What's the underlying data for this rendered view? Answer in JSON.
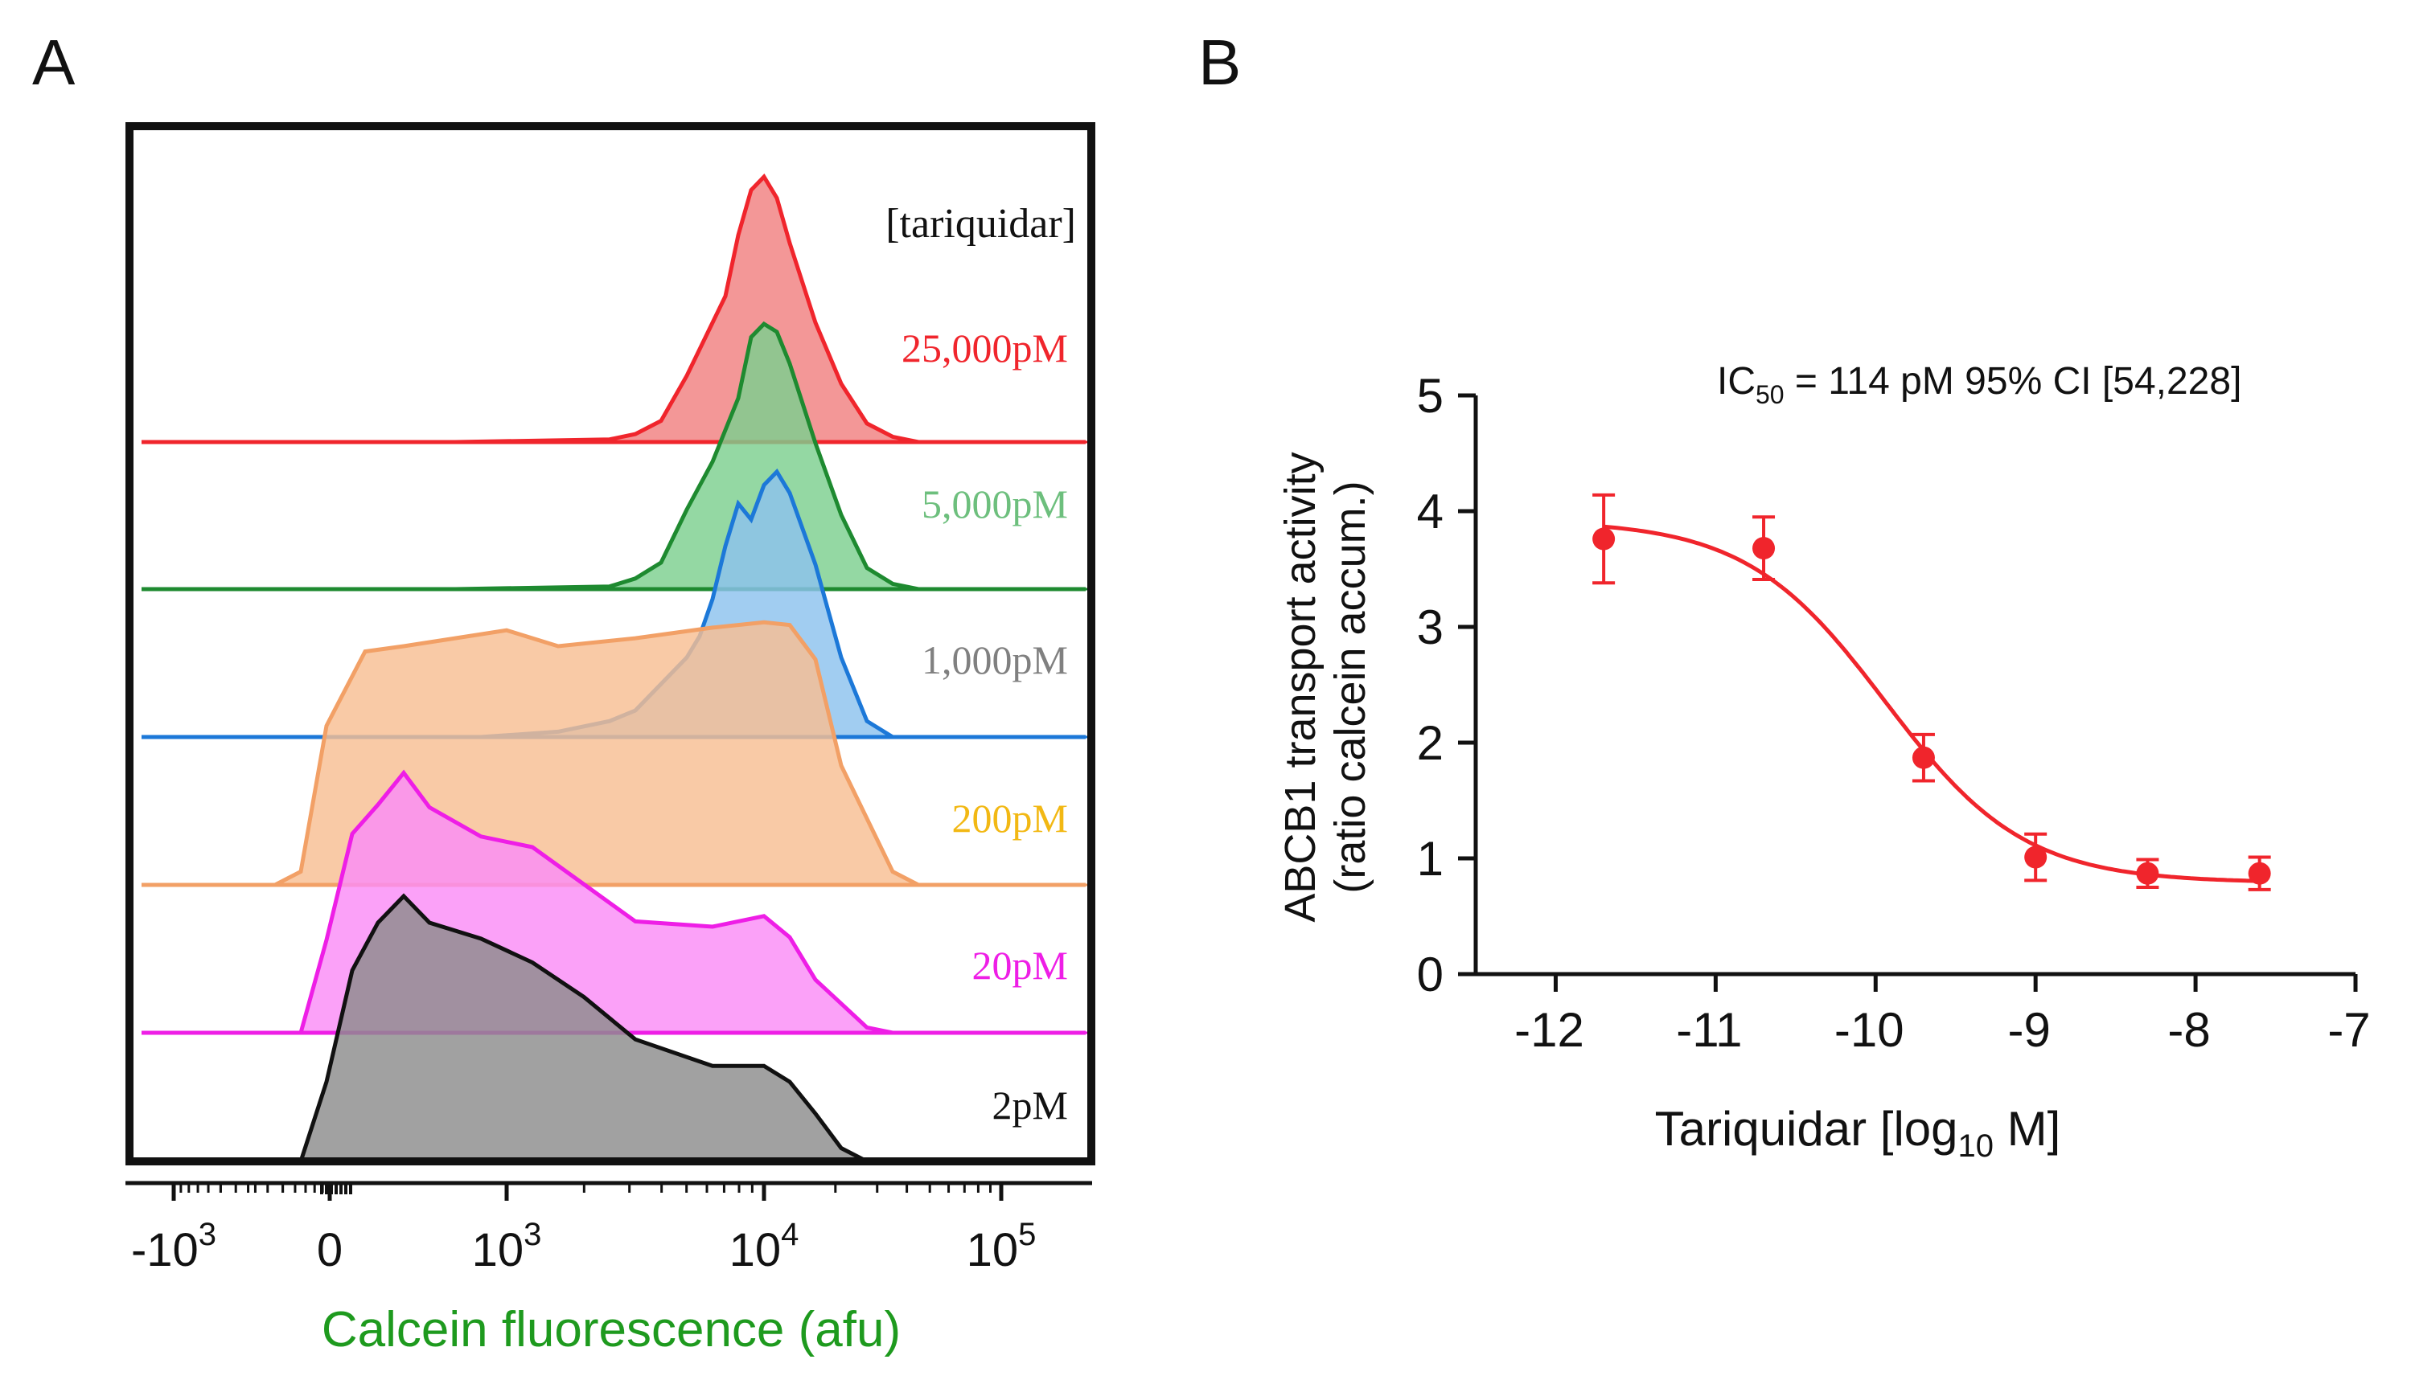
{
  "panels": {
    "a_label": "A",
    "b_label": "B"
  },
  "colors": {
    "red": "#f0252c",
    "red_fill": "#f08080",
    "green": "#1e8a30",
    "green_fill": "#7ccf8f",
    "green_label": "#6dbf7d",
    "blue": "#1c78d8",
    "blue_fill": "#8cc2ee",
    "gray_label": "#808080",
    "orange": "#f2a066",
    "orange_fill": "#f8be92",
    "orange_label": "#f2b814",
    "magenta": "#ee1ee6",
    "magenta_fill": "#fa8cf6",
    "black": "#111111",
    "gray_fill": "#8c8c8c",
    "xlabel_green": "#1e9a1e"
  },
  "chart_data": [
    {
      "id": "A",
      "type": "area",
      "title": "",
      "legend_title": "[tariquidar]",
      "xlabel": "Calcein fluorescence (afu)",
      "xscale": "biexponential",
      "x_ticks": [
        {
          "label_base": "-10",
          "label_exp": "3",
          "value": -1000
        },
        {
          "label_base": "0",
          "label_exp": "",
          "value": 0
        },
        {
          "label_base": "10",
          "label_exp": "3",
          "value": 1000
        },
        {
          "label_base": "10",
          "label_exp": "4",
          "value": 10000
        },
        {
          "label_base": "10",
          "label_exp": "5",
          "value": 100000
        }
      ],
      "series": [
        {
          "name": "25,000pM",
          "color": "red",
          "fill": "red_fill",
          "label_color": "red",
          "curve": [
            [
              2.8,
              0.0
            ],
            [
              3.4,
              0.01
            ],
            [
              3.5,
              0.03
            ],
            [
              3.6,
              0.08
            ],
            [
              3.7,
              0.25
            ],
            [
              3.8,
              0.45
            ],
            [
              3.85,
              0.55
            ],
            [
              3.9,
              0.78
            ],
            [
              3.95,
              0.95
            ],
            [
              4.0,
              1.0
            ],
            [
              4.05,
              0.92
            ],
            [
              4.1,
              0.75
            ],
            [
              4.2,
              0.45
            ],
            [
              4.3,
              0.22
            ],
            [
              4.4,
              0.07
            ],
            [
              4.5,
              0.02
            ],
            [
              4.6,
              0.0
            ]
          ]
        },
        {
          "name": "5,000pM",
          "color": "green",
          "fill": "green_fill",
          "label_color": "green_label",
          "curve": [
            [
              2.8,
              0.0
            ],
            [
              3.4,
              0.01
            ],
            [
              3.5,
              0.04
            ],
            [
              3.6,
              0.1
            ],
            [
              3.7,
              0.3
            ],
            [
              3.8,
              0.48
            ],
            [
              3.85,
              0.6
            ],
            [
              3.9,
              0.72
            ],
            [
              3.95,
              0.95
            ],
            [
              4.0,
              1.0
            ],
            [
              4.05,
              0.97
            ],
            [
              4.1,
              0.85
            ],
            [
              4.2,
              0.55
            ],
            [
              4.3,
              0.28
            ],
            [
              4.4,
              0.08
            ],
            [
              4.5,
              0.02
            ],
            [
              4.6,
              0.0
            ]
          ]
        },
        {
          "name": "1,000pM",
          "color": "blue",
          "fill": "blue_fill",
          "label_color": "gray_label",
          "curve": [
            [
              2.9,
              0.0
            ],
            [
              3.2,
              0.02
            ],
            [
              3.4,
              0.06
            ],
            [
              3.5,
              0.1
            ],
            [
              3.6,
              0.2
            ],
            [
              3.7,
              0.3
            ],
            [
              3.75,
              0.38
            ],
            [
              3.8,
              0.52
            ],
            [
              3.85,
              0.72
            ],
            [
              3.9,
              0.88
            ],
            [
              3.95,
              0.82
            ],
            [
              4.0,
              0.95
            ],
            [
              4.05,
              1.0
            ],
            [
              4.1,
              0.92
            ],
            [
              4.2,
              0.65
            ],
            [
              4.3,
              0.3
            ],
            [
              4.4,
              0.06
            ],
            [
              4.5,
              0.0
            ]
          ]
        },
        {
          "name": "200pM",
          "color": "orange",
          "fill": "orange_fill",
          "label_color": "orange_label",
          "curve": [
            [
              2.1,
              0.0
            ],
            [
              2.2,
              0.05
            ],
            [
              2.3,
              0.6
            ],
            [
              2.45,
              0.88
            ],
            [
              2.6,
              0.9
            ],
            [
              2.8,
              0.93
            ],
            [
              3.0,
              0.96
            ],
            [
              3.2,
              0.9
            ],
            [
              3.5,
              0.93
            ],
            [
              3.8,
              0.97
            ],
            [
              4.0,
              0.99
            ],
            [
              4.1,
              0.98
            ],
            [
              4.2,
              0.85
            ],
            [
              4.3,
              0.45
            ],
            [
              4.5,
              0.05
            ],
            [
              4.6,
              0.0
            ]
          ]
        },
        {
          "name": "20pM",
          "color": "magenta",
          "fill": "magenta_fill",
          "label_color": "magenta",
          "curve": [
            [
              2.2,
              0.0
            ],
            [
              2.3,
              0.35
            ],
            [
              2.4,
              0.75
            ],
            [
              2.5,
              0.86
            ],
            [
              2.6,
              0.98
            ],
            [
              2.7,
              0.85
            ],
            [
              2.9,
              0.74
            ],
            [
              3.1,
              0.7
            ],
            [
              3.3,
              0.56
            ],
            [
              3.5,
              0.42
            ],
            [
              3.8,
              0.4
            ],
            [
              4.0,
              0.44
            ],
            [
              4.1,
              0.36
            ],
            [
              4.2,
              0.2
            ],
            [
              4.4,
              0.02
            ],
            [
              4.5,
              0.0
            ]
          ]
        },
        {
          "name": "2pM",
          "color": "black",
          "fill": "gray_fill",
          "label_color": "black",
          "curve": [
            [
              2.2,
              0.0
            ],
            [
              2.3,
              0.3
            ],
            [
              2.4,
              0.72
            ],
            [
              2.5,
              0.9
            ],
            [
              2.6,
              1.0
            ],
            [
              2.7,
              0.9
            ],
            [
              2.9,
              0.84
            ],
            [
              3.1,
              0.75
            ],
            [
              3.3,
              0.62
            ],
            [
              3.5,
              0.46
            ],
            [
              3.8,
              0.36
            ],
            [
              4.0,
              0.36
            ],
            [
              4.1,
              0.3
            ],
            [
              4.2,
              0.18
            ],
            [
              4.3,
              0.05
            ],
            [
              4.4,
              0.0
            ]
          ]
        }
      ]
    },
    {
      "id": "B",
      "type": "scatter",
      "title": "",
      "annotation_prefix": "IC",
      "annotation_sub": "50",
      "annotation_rest": " = 114 pM 95% CI [54,228]",
      "xlabel_prefix": "Tariquidar [log",
      "xlabel_sub": "10",
      "xlabel_suffix": " M]",
      "ylabel_line1": "ABCB1 transport activity",
      "ylabel_line2": "(ratio calcein accum.)",
      "xlim": [
        -12.5,
        -7
      ],
      "ylim": [
        0,
        5
      ],
      "xticks": [
        -12,
        -11,
        -10,
        -9,
        -8,
        -7
      ],
      "yticks": [
        0,
        1,
        2,
        3,
        4,
        5
      ],
      "points": [
        {
          "x": -11.7,
          "y": 3.76,
          "err": 0.38
        },
        {
          "x": -10.7,
          "y": 3.68,
          "err": 0.27
        },
        {
          "x": -9.7,
          "y": 1.87,
          "err": 0.2
        },
        {
          "x": -9.0,
          "y": 1.01,
          "err": 0.2
        },
        {
          "x": -8.3,
          "y": 0.87,
          "err": 0.12
        },
        {
          "x": -7.6,
          "y": 0.87,
          "err": 0.14
        }
      ],
      "fit": {
        "top": 3.92,
        "bottom": 0.79,
        "log_ic50": -9.94,
        "hill": 1.0,
        "x_from": -11.7,
        "x_to": -7.6
      },
      "color": "#f0252c"
    }
  ]
}
